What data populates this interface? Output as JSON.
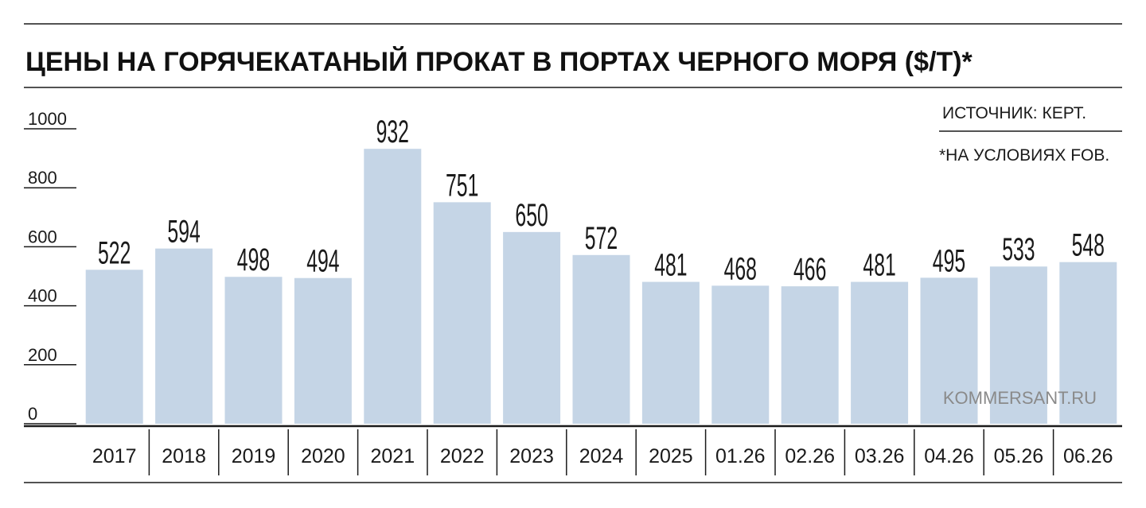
{
  "title": "ЦЕНЫ НА ГОРЯЧЕКАТАНЫЙ ПРОКАТ В ПОРТАХ ЧЕРНОГО МОРЯ ($/Т)*",
  "source": "ИСТОЧНИК: КЕРТ.",
  "footnote": "*НА УСЛОВИЯХ FOB.",
  "brand": "KOMMERSANT.RU",
  "colors": {
    "bar": "#c5d5e6",
    "text": "#1a1a1a",
    "rule": "#1a1a1a"
  },
  "chart_data": {
    "type": "bar",
    "categories": [
      "2017",
      "2018",
      "2019",
      "2020",
      "2021",
      "2022",
      "2023",
      "2024",
      "2025",
      "01.26",
      "02.26",
      "03.26",
      "04.26",
      "05.26",
      "06.26"
    ],
    "values": [
      522,
      594,
      498,
      494,
      932,
      751,
      650,
      572,
      481,
      468,
      466,
      481,
      495,
      533,
      548
    ],
    "data_labels": [
      "522",
      "594",
      "498",
      "494",
      "932",
      "751",
      "650",
      "572",
      "481",
      "468",
      "466",
      "481",
      "495",
      "533",
      "548"
    ],
    "yticks": [
      0,
      200,
      400,
      600,
      800,
      1000
    ],
    "ytick_labels": [
      "0",
      "200",
      "400",
      "600",
      "800",
      "1000"
    ],
    "ylim": [
      0,
      1000
    ],
    "grid": false,
    "legend": "none"
  }
}
